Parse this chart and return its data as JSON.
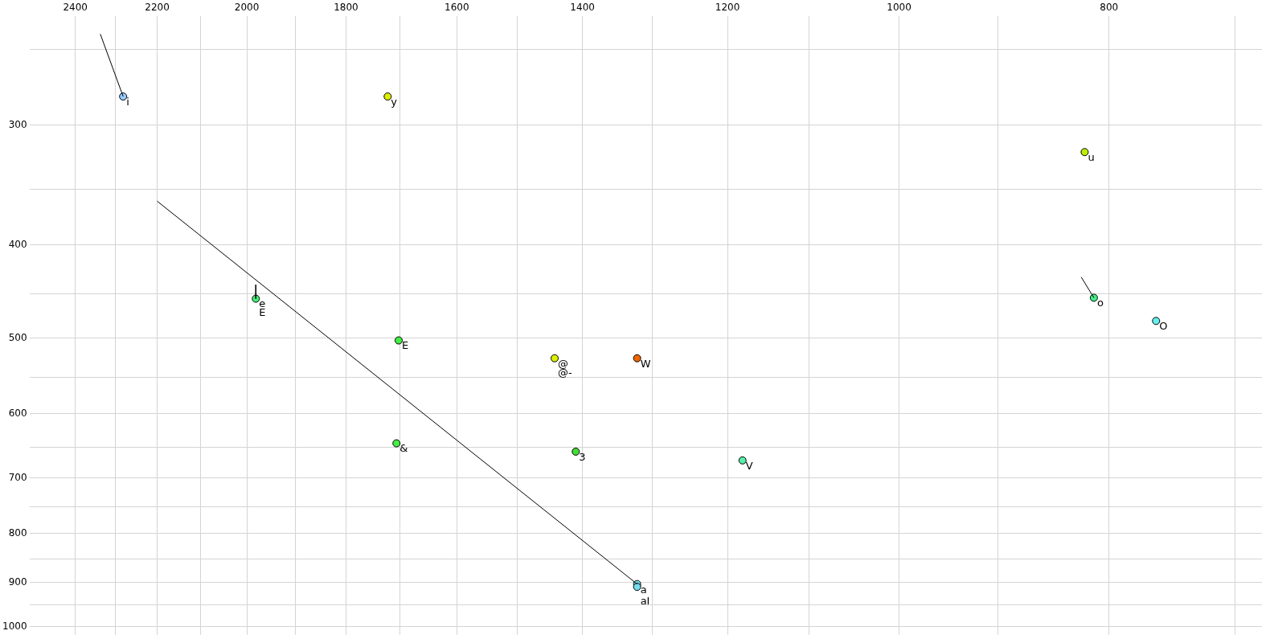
{
  "chart_data": {
    "type": "scatter",
    "log": "xy",
    "grid": true,
    "marker": "circle",
    "xlim": [
      2520,
      680
    ],
    "ylim": [
      1020,
      231
    ],
    "xticks": [
      2400,
      {
        "value": 2300,
        "label": null
      },
      2200,
      {
        "value": 2100,
        "label": null
      },
      2000,
      {
        "value": 1900,
        "label": null
      },
      1800,
      {
        "value": 1700,
        "label": null
      },
      1600,
      {
        "value": 1500,
        "label": null
      },
      1400,
      {
        "value": 1300,
        "label": null
      },
      1200,
      {
        "value": 1100,
        "label": null
      },
      1000,
      {
        "value": 900,
        "label": null
      },
      800,
      {
        "value": 700,
        "label": null
      }
    ],
    "yticks": [
      {
        "value": 250,
        "label": null
      },
      300,
      {
        "value": 350,
        "label": null
      },
      400,
      {
        "value": 450,
        "label": null
      },
      500,
      {
        "value": 550,
        "label": null
      },
      600,
      {
        "value": 650,
        "label": null
      },
      700,
      {
        "value": 750,
        "label": null
      },
      800,
      {
        "value": 850,
        "label": null
      },
      900,
      {
        "value": 950,
        "label": null
      },
      1000
    ],
    "series": [
      {
        "type": "line",
        "color": "#000000",
        "marker": "none",
        "line_style": "solid",
        "x": [
          2337,
          2281
        ],
        "values": [
          241,
          280
        ]
      },
      {
        "type": "line",
        "color": "#000000",
        "marker": "none",
        "line_style": "solid",
        "x": [
          2200,
          1321
        ],
        "values": [
          360,
          903
        ]
      },
      {
        "type": "line",
        "color": "#000000",
        "marker": "none",
        "line_style": "solid",
        "x": [
          1981,
          1981
        ],
        "values": [
          440,
          455
        ]
      },
      {
        "type": "line",
        "color": "#000000",
        "marker": "none",
        "line_style": "solid",
        "x": [
          824,
          813
        ],
        "values": [
          432,
          454
        ]
      },
      {
        "x": [
          2281,
          1722,
          1981,
          1702,
          1442,
          1321,
          1706,
          1410,
          1181,
          1321,
          1321,
          821,
          813,
          761
        ],
        "values": [
          280,
          280,
          455,
          503,
          525,
          525,
          644,
          657,
          671,
          903,
          909,
          320,
          454,
          480
        ],
        "colors": [
          "#99ccff",
          "#ddee00",
          "#44ee77",
          "#44ee44",
          "#ddee00",
          "#ee6600",
          "#44ee44",
          "#44dd33",
          "#55eeaa",
          "#77ddee",
          "#77ddee",
          "#bbee00",
          "#44ee88",
          "#66eeee"
        ]
      }
    ],
    "annotations": [
      {
        "text": "i",
        "x": 2281,
        "y": 280
      },
      {
        "text": "y",
        "x": 1722,
        "y": 280
      },
      {
        "text": "e",
        "x": 1981,
        "y": 455
      },
      {
        "text": "E",
        "x": 1981,
        "y": 455
      },
      {
        "text": "E",
        "x": 1702,
        "y": 503
      },
      {
        "text": "@",
        "x": 1442,
        "y": 525
      },
      {
        "text": "@-",
        "x": 1442,
        "y": 525
      },
      {
        "text": "W",
        "x": 1321,
        "y": 525
      },
      {
        "text": "&",
        "x": 1706,
        "y": 644
      },
      {
        "text": "3",
        "x": 1410,
        "y": 657
      },
      {
        "text": "V",
        "x": 1181,
        "y": 671
      },
      {
        "text": "a",
        "x": 1321,
        "y": 903
      },
      {
        "text": "aI",
        "x": 1321,
        "y": 909
      },
      {
        "text": "u",
        "x": 821,
        "y": 320
      },
      {
        "text": "o",
        "x": 813,
        "y": 454
      },
      {
        "text": "O",
        "x": 761,
        "y": 480
      }
    ]
  }
}
